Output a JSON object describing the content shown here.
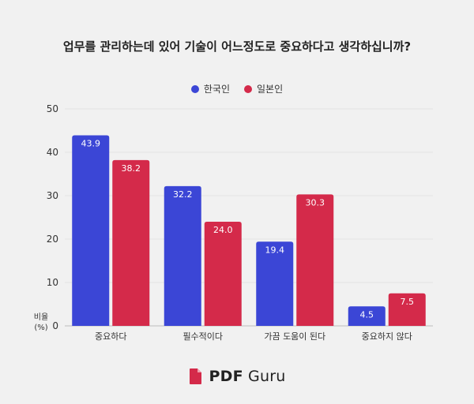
{
  "chart_data": {
    "type": "bar",
    "title": "업무를 관리하는데 있어 기술이 어느정도로 중요하다고 생각하십니까?",
    "ylabel": "비율\n(%)",
    "ylim": [
      0,
      50
    ],
    "yticks": [
      0,
      10,
      20,
      30,
      40,
      50
    ],
    "grid": true,
    "legend_position": "top-center",
    "categories": [
      "중요하다",
      "필수적이다",
      "가끔 도움이 된다",
      "중요하지 않다"
    ],
    "series": [
      {
        "name": "한국인",
        "color": "#3b46d6",
        "values": [
          43.9,
          32.2,
          19.4,
          4.5
        ]
      },
      {
        "name": "일본인",
        "color": "#d42a4a",
        "values": [
          38.2,
          24.0,
          30.3,
          7.5
        ]
      }
    ]
  },
  "brand": {
    "name_bold": "PDF",
    "name_rest": "Guru",
    "logo_icon": "pdf-document-icon",
    "color": "#d42a4a"
  }
}
